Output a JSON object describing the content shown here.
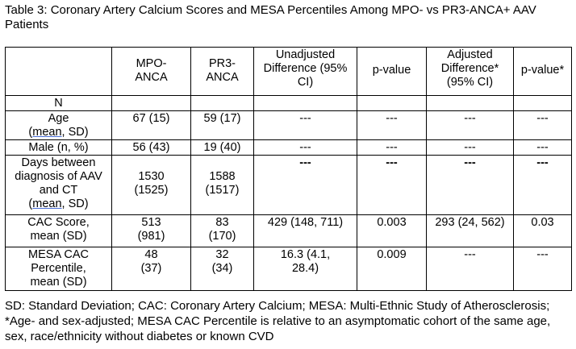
{
  "title": "Table 3: Coronary Artery Calcium Scores and MESA Percentiles Among MPO- vs PR3-ANCA+ AAV Patients",
  "header": {
    "col0": "",
    "col1": "MPO-ANCA",
    "col2": "PR3-ANCA",
    "col3": "Unadjusted Difference (95% CI)",
    "col4": "p-value",
    "col5": "Adjusted Difference* (95% CI)",
    "col6": "p-value*"
  },
  "rows": {
    "n": {
      "label": "N",
      "mpo": "",
      "pr3": "",
      "unadj": "",
      "p": "",
      "adj": "",
      "padj": ""
    },
    "age": {
      "label_line1": "Age",
      "label_line2_mean": "mean",
      "label_line2_rest": ", SD)",
      "label_line2_open": "(",
      "mpo": "67 (15)",
      "pr3": "59 (17)",
      "unadj": "---",
      "p": "---",
      "adj": "---",
      "padj": "---"
    },
    "male": {
      "label": "Male (n, %)",
      "mpo": "56 (43)",
      "pr3": "19 (40)",
      "unadj": "---",
      "p": "---",
      "adj": "---",
      "padj": "---"
    },
    "days": {
      "label_main": "Days between diagnosis of AAV and CT",
      "label_open": "(",
      "label_mean": "mean",
      "label_rest": ", SD)",
      "mpo": "1530 (1525)",
      "pr3": "1588 (1517)",
      "unadj": "---",
      "p": "---",
      "adj": "---",
      "padj": "---"
    },
    "cac": {
      "label": "CAC Score, mean (SD)",
      "mpo": "513 (981)",
      "pr3": "83 (170)",
      "unadj": "429 (148, 711)",
      "p": "0.003",
      "adj": "293 (24, 562)",
      "padj": "0.03"
    },
    "mesa": {
      "label": "MESA CAC Percentile, mean (SD)",
      "mpo": "48 (37)",
      "pr3": "32 (34)",
      "unadj": "16.3 (4.1, 28.4)",
      "p": "0.009",
      "adj": "---",
      "padj": "---"
    }
  },
  "footnote": "SD: Standard Deviation; CAC: Coronary Artery Calcium; MESA: Multi-Ethnic Study of Atherosclerosis; *Age- and sex-adjusted; MESA CAC Percentile is relative to an asymptomatic cohort of the same age, sex, race/ethnicity without diabetes or known CVD"
}
